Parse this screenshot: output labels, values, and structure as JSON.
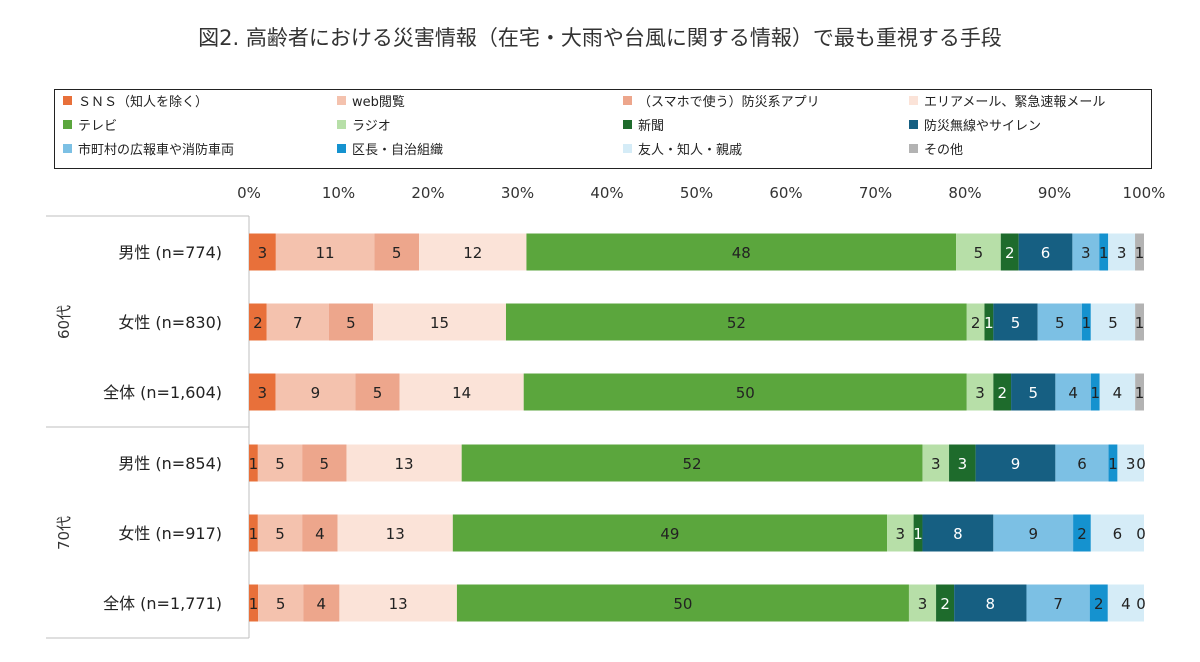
{
  "title": "図2. 高齢者における災害情報（在宅・大雨や台風に関する情報）で最も重視する手段",
  "chart_data": {
    "type": "bar",
    "orientation": "horizontal-stacked-100",
    "xlim": [
      0,
      100
    ],
    "x_ticks": [
      "0%",
      "10%",
      "20%",
      "30%",
      "40%",
      "50%",
      "60%",
      "70%",
      "80%",
      "90%",
      "100%"
    ],
    "legend_position": "top",
    "groups": [
      {
        "label": "60代",
        "rows": [
          0,
          1,
          2
        ]
      },
      {
        "label": "70代",
        "rows": [
          3,
          4,
          5
        ]
      }
    ],
    "categories": [
      "男性 (n=774)",
      "女性 (n=830)",
      "全体 (n=1,604)",
      "男性 (n=854)",
      "女性 (n=917)",
      "全体 (n=1,771)"
    ],
    "series": [
      {
        "name": "ＳＮＳ（知人を除く）",
        "color": "#e8703a",
        "values": [
          3,
          2,
          3,
          1,
          1,
          1
        ]
      },
      {
        "name": "web閲覧",
        "color": "#f4c2ae",
        "values": [
          11,
          7,
          9,
          5,
          5,
          5
        ]
      },
      {
        "name": "（スマホで使う）防災系アプリ",
        "color": "#eda68c",
        "values": [
          5,
          5,
          5,
          5,
          4,
          4
        ]
      },
      {
        "name": "エリアメール、緊急速報メール",
        "color": "#fbe3d8",
        "values": [
          12,
          15,
          14,
          13,
          13,
          13
        ]
      },
      {
        "name": "テレビ",
        "color": "#5ba63d",
        "values": [
          48,
          52,
          50,
          52,
          49,
          50
        ]
      },
      {
        "name": "ラジオ",
        "color": "#b7dfa8",
        "values": [
          5,
          2,
          3,
          3,
          3,
          3
        ]
      },
      {
        "name": "新聞",
        "color": "#1e6b2c",
        "values": [
          2,
          1,
          2,
          3,
          1,
          2
        ]
      },
      {
        "name": "防災無線やサイレン",
        "color": "#165f82",
        "values": [
          6,
          5,
          5,
          9,
          8,
          8
        ]
      },
      {
        "name": "市町村の広報車や消防車両",
        "color": "#7cc0e4",
        "values": [
          3,
          5,
          4,
          6,
          9,
          7
        ]
      },
      {
        "name": "区長・自治組織",
        "color": "#1592cf",
        "values": [
          1,
          1,
          1,
          1,
          2,
          2
        ]
      },
      {
        "name": "友人・知人・親戚",
        "color": "#d5ecf7",
        "values": [
          3,
          5,
          4,
          3,
          6,
          4
        ]
      },
      {
        "name": "その他",
        "color": "#b3b3b3",
        "values": [
          1,
          1,
          1,
          0,
          0,
          0
        ]
      }
    ]
  }
}
